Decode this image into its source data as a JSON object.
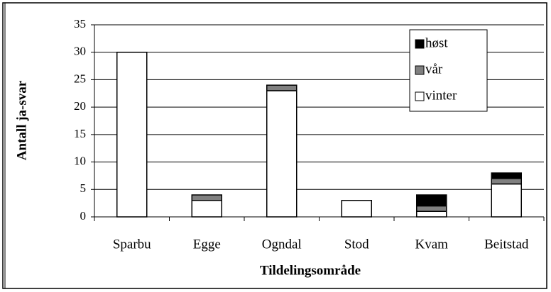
{
  "chart_data": {
    "type": "bar",
    "stacked": true,
    "xlabel": "Tildelingsområde",
    "ylabel": "Antall ja-svar",
    "categories": [
      "Sparbu",
      "Egge",
      "Ogndal",
      "Stod",
      "Kvam",
      "Beitstad"
    ],
    "series": [
      {
        "name": "vinter",
        "color": "#ffffff",
        "values": [
          30,
          3,
          23,
          3,
          1,
          6
        ]
      },
      {
        "name": "vår",
        "color": "#808080",
        "values": [
          0,
          1,
          1,
          0,
          1,
          1
        ]
      },
      {
        "name": "høst",
        "color": "#000000",
        "values": [
          0,
          0,
          0,
          0,
          2,
          1
        ]
      }
    ],
    "ylim": [
      0,
      35
    ],
    "yticks": [
      0,
      5,
      10,
      15,
      20,
      25,
      30,
      35
    ],
    "grid": true,
    "legend": "upper right"
  }
}
